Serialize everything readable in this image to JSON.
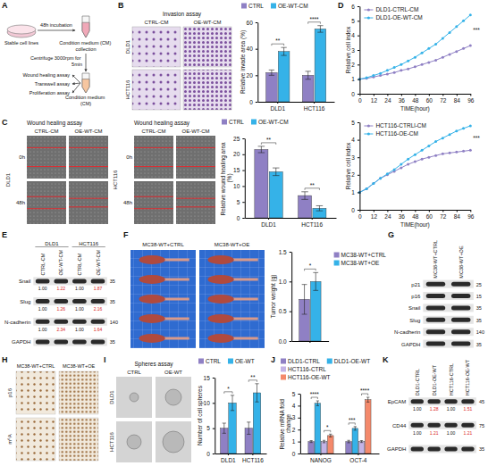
{
  "letters": [
    "A",
    "B",
    "C",
    "D",
    "E",
    "F",
    "G",
    "H",
    "I",
    "J",
    "K"
  ],
  "schematic": {
    "cells": "Stable cell lines",
    "incubation": "48h incubation",
    "collection": "Condition medium (CM) collection",
    "centrifuge": "Centrifuge 3000rpm for 5min",
    "medium": "Condition medium (CM)",
    "assays": [
      "Wound healing assay",
      "Transwell assay",
      "Proliferation assay"
    ]
  },
  "image_panels": {
    "B": {
      "title": "Invasion assay",
      "columns": [
        "CTRL-CM",
        "OE-WT-CM"
      ],
      "rows": [
        "DLD1",
        "HCT116"
      ]
    },
    "C": {
      "groups": [
        {
          "name": "DLD1",
          "title": "Wound healing assay",
          "columns": [
            "CTRL-CM",
            "OE-WT-CM"
          ],
          "rows": [
            "0h",
            "48h"
          ]
        },
        {
          "name": "HCT116",
          "title": "Wound healing assay",
          "columns": [
            "CTRL-CM",
            "OE-WT-CM"
          ],
          "rows": [
            "0h",
            "48h"
          ]
        }
      ]
    },
    "F": {
      "columns": [
        "MC38-WT+CTRL",
        "MC38-WT+OE"
      ]
    },
    "H": {
      "columns": [
        "MC38-WT+CTRL",
        "MC38-WT+OE"
      ],
      "rows": [
        "p16",
        "m⁶A"
      ]
    },
    "I": {
      "title": "Spheres assay",
      "columns": [
        "CTRL",
        "OE-WT"
      ],
      "rows": [
        "DLD1",
        "HCT116"
      ]
    }
  },
  "blots": {
    "E": {
      "groups": [
        {
          "name": "DLD1",
          "columns": [
            "CTRL-CM",
            "OE-WT-CM"
          ]
        },
        {
          "name": "HCT116",
          "columns": [
            "CTRL-CM",
            "OE-WT-CM"
          ]
        }
      ],
      "rows": [
        {
          "name": "Snail",
          "mw": 35,
          "quant": [
            "1.00",
            "1.22",
            "1.00",
            "1.87"
          ]
        },
        {
          "name": "Slug",
          "mw": 35,
          "quant": [
            "1.00",
            "1.26",
            "1.00",
            "2.16"
          ]
        },
        {
          "name": "N-cadherin",
          "mw": 140,
          "quant": [
            "1.00",
            "2.34",
            "1.00",
            "1.64"
          ]
        },
        {
          "name": "GAPDH",
          "mw": 35
        }
      ]
    },
    "G": {
      "columns": [
        "MC38-WT+CTRL",
        "MC38-WT+OE"
      ],
      "rows": [
        {
          "name": "p21",
          "mw": 25
        },
        {
          "name": "p16",
          "mw": 15
        },
        {
          "name": "Snail",
          "mw": 35
        },
        {
          "name": "Slug",
          "mw": 35
        },
        {
          "name": "N-cadherin",
          "mw": 140
        },
        {
          "name": "GAPDH",
          "mw": 35
        }
      ]
    },
    "K": {
      "columns": [
        "DLD1-CTRL",
        "DLD1-OE-WT",
        "HCT116-CTRL",
        "HCT116-OE-WT"
      ],
      "rows": [
        {
          "name": "EpCAM",
          "mw": 45,
          "quant": [
            "1.00",
            "1.28",
            "1.00",
            "1.51"
          ]
        },
        {
          "name": "CD44",
          "mw": 75,
          "quant": [
            "1.00",
            "1.21",
            "1.00",
            "1.21"
          ]
        },
        {
          "name": "GAPDH",
          "mw": 35
        }
      ]
    }
  },
  "chart_data": [
    {
      "type": "bar",
      "y_label": "Relative invade area (%)",
      "categories": [
        "DLD1",
        "HCT116"
      ],
      "series": [
        {
          "name": "CTRL",
          "color": "#8f80c4",
          "values": [
            22,
            20
          ],
          "errors": [
            2,
            3
          ]
        },
        {
          "name": "OE-WT-CM",
          "color": "#35b2e8",
          "values": [
            38,
            55
          ],
          "errors": [
            3,
            2.5
          ]
        }
      ],
      "ylim": [
        0,
        60
      ],
      "yticks": [
        0,
        20,
        40,
        60
      ],
      "legend": "top",
      "annotations": [
        [
          "**"
        ],
        [
          "****"
        ]
      ]
    },
    {
      "type": "bar",
      "y_label": "Relative wound healing area (%)",
      "categories": [
        "DLD1",
        "HCT116"
      ],
      "series": [
        {
          "name": "CTRL",
          "color": "#8f80c4",
          "values": [
            21.5,
            7
          ],
          "errors": [
            1,
            1.2
          ]
        },
        {
          "name": "OE-WT-CM",
          "color": "#35b2e8",
          "values": [
            14.5,
            3
          ],
          "errors": [
            1.2,
            0.8
          ]
        }
      ],
      "ylim": [
        0,
        25
      ],
      "yticks": [
        0,
        5,
        10,
        15,
        20,
        25
      ],
      "legend": "top",
      "annotations": [
        [
          "**"
        ],
        [
          "**"
        ]
      ]
    },
    {
      "type": "line",
      "y_label": "Relative cell index",
      "x_label": "TIME(hour)",
      "x": [
        0,
        6,
        12,
        18,
        24,
        30,
        36,
        42,
        48,
        54,
        60,
        66,
        72,
        78,
        84,
        90,
        96
      ],
      "xlim": [
        0,
        96
      ],
      "xticks": [
        0,
        12,
        24,
        36,
        48,
        60,
        72,
        84,
        96
      ],
      "ylim": [
        0,
        6
      ],
      "yticks": [
        0,
        1,
        2,
        3,
        4,
        5,
        6
      ],
      "marker": "circle",
      "legend": "top-left",
      "series": [
        {
          "name": "DLD1-CTRL-CM",
          "color": "#8f80c4",
          "values": [
            1.0,
            1.05,
            1.15,
            1.25,
            1.35,
            1.45,
            1.6,
            1.7,
            1.85,
            2.0,
            2.15,
            2.3,
            2.5,
            2.7,
            2.9,
            3.1,
            3.3
          ]
        },
        {
          "name": "DLD1-OE-WT-CM",
          "color": "#35b2e8",
          "values": [
            1.0,
            1.1,
            1.25,
            1.4,
            1.6,
            1.8,
            2.0,
            2.25,
            2.5,
            2.8,
            3.1,
            3.4,
            3.8,
            4.2,
            4.6,
            5.0,
            5.4
          ]
        }
      ],
      "annotations": [
        "***"
      ]
    },
    {
      "type": "line",
      "y_label": "Relative cell index",
      "x_label": "TIME(hour)",
      "x": [
        0,
        6,
        12,
        18,
        24,
        30,
        36,
        42,
        48,
        54,
        60,
        66,
        72,
        78,
        84,
        90,
        96
      ],
      "xlim": [
        0,
        96
      ],
      "xticks": [
        0,
        12,
        24,
        36,
        48,
        60,
        72,
        84,
        96
      ],
      "ylim": [
        0,
        5
      ],
      "yticks": [
        0,
        1,
        2,
        3,
        4,
        5
      ],
      "marker": "circle",
      "legend": "top-left",
      "series": [
        {
          "name": "HCT116-CTRLl-CM",
          "color": "#8f80c4",
          "values": [
            1.0,
            1.2,
            1.5,
            1.8,
            2.0,
            2.2,
            2.4,
            2.6,
            2.75,
            2.9,
            3.0,
            3.1,
            3.2,
            3.25,
            3.3,
            3.35,
            3.4
          ]
        },
        {
          "name": "HCT116-OE-CM",
          "color": "#35b2e8",
          "values": [
            1.0,
            1.2,
            1.5,
            1.8,
            2.05,
            2.3,
            2.6,
            2.9,
            3.15,
            3.4,
            3.65,
            3.9,
            4.1,
            4.3,
            4.5,
            4.65,
            4.8
          ]
        }
      ],
      "annotations": [
        "***"
      ]
    },
    {
      "type": "bar",
      "y_label": "Tumor weight (g)",
      "categories": [
        null
      ],
      "series": [
        {
          "name": "MC38-WT+CTRL",
          "color": "#8f80c4",
          "values": [
            0.7
          ],
          "errors": [
            0.25
          ]
        },
        {
          "name": "MC38-WT+OE",
          "color": "#35b2e8",
          "values": [
            1.0
          ],
          "errors": [
            0.15
          ]
        }
      ],
      "ylim": [
        0,
        1.5
      ],
      "yticks": [
        {
          "value": 0,
          "label": "0.0"
        },
        {
          "value": 0.5,
          "label": "0.5"
        },
        {
          "value": 1,
          "label": "1.0"
        },
        {
          "value": 1.5,
          "label": "1.5"
        }
      ],
      "legend": "right",
      "annotations": [
        [
          "*"
        ]
      ]
    },
    {
      "type": "bar",
      "y_label": "Number of cell spheres",
      "categories": [
        "DLD1",
        "HCT116"
      ],
      "series": [
        {
          "name": "CTRL",
          "color": "#8f80c4",
          "values": [
            5,
            5
          ],
          "errors": [
            1,
            1.2
          ]
        },
        {
          "name": "OE-WT",
          "color": "#35b2e8",
          "values": [
            10,
            12
          ],
          "errors": [
            1.5,
            1.8
          ]
        }
      ],
      "ylim": [
        0,
        15
      ],
      "yticks": [
        0,
        5,
        10,
        15
      ],
      "legend": "top",
      "annotations": [
        [
          "*"
        ],
        [
          "**"
        ]
      ]
    },
    {
      "type": "bar",
      "y_label": "Relative mRNA fold change",
      "categories": [
        "NANOG",
        "OCT-4"
      ],
      "series": [
        {
          "name": "DLD1-CTRL",
          "color": "#8f80c4",
          "values": [
            1,
            1
          ],
          "errors": [
            0.08,
            0.1
          ]
        },
        {
          "name": "DLD1-OE-WT",
          "color": "#35b2e8",
          "values": [
            4.2,
            2.1
          ],
          "errors": [
            0.2,
            0.15
          ]
        },
        {
          "name": "HCT116-CTRL",
          "color": "#c4b4e6",
          "values": [
            1,
            1
          ],
          "errors": [
            0.1,
            0.08
          ]
        },
        {
          "name": "HCT116-OE-WT",
          "color": "#f4896b",
          "values": [
            1.5,
            4.5
          ],
          "errors": [
            0.12,
            0.2
          ]
        }
      ],
      "ylim": [
        0,
        5
      ],
      "yticks": [
        0,
        1,
        2,
        3,
        4,
        5
      ],
      "legend": "top",
      "annotations": [
        [
          "****",
          "*"
        ],
        [
          "***",
          "****"
        ]
      ]
    }
  ]
}
